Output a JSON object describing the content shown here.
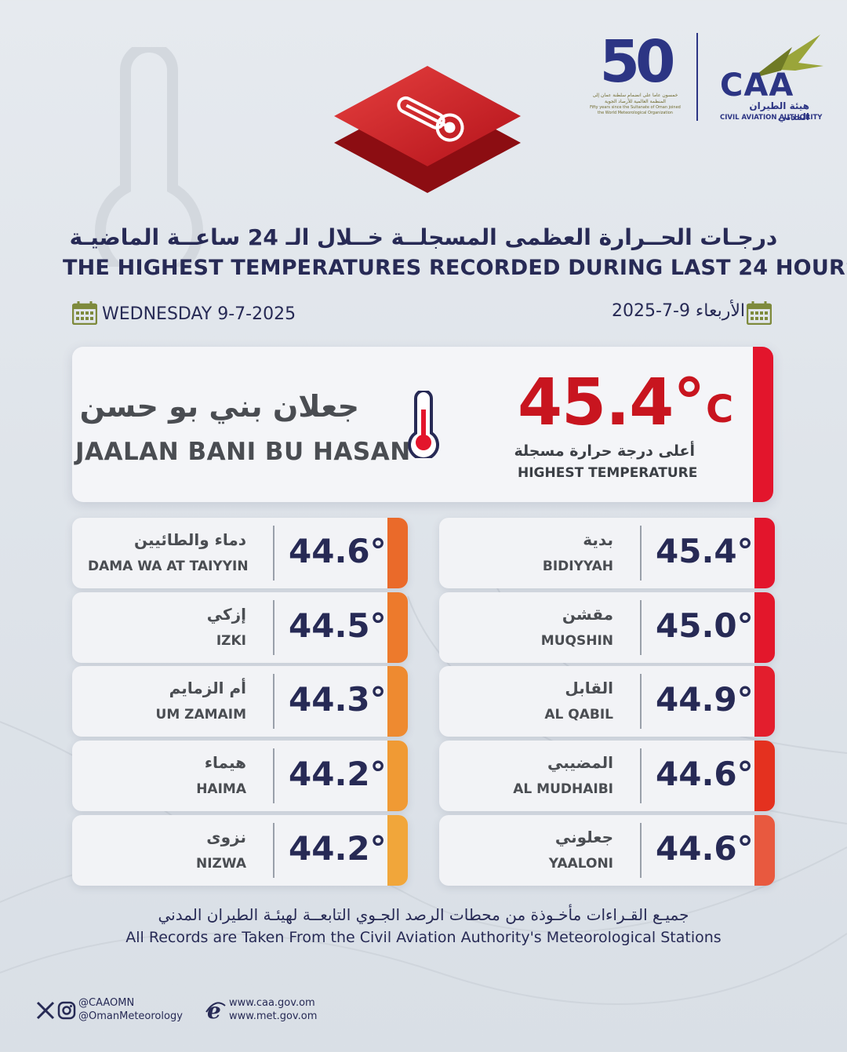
{
  "header": {
    "logo_50_numeral": "50",
    "logo_50_ar": "خمسون عاما على انضمام سلطنة عمان إلى المنظمة العالمية للأرصاد الجوية",
    "logo_50_en": "Fifty years since the Sultanate of Oman joined the World Meteorological Organization",
    "caa_word": "CAA",
    "caa_ar": "هيئة الطيران المدني",
    "caa_en": "CIVIL AVIATION AUTHORITY",
    "title_ar": "درجـات الحــرارة العظمى المسجلــة خــلال الـ 24 ساعــة الماضيـة",
    "title_en": "THE HIGHEST TEMPERATURES RECORDED DURING LAST 24 HOURS",
    "date_en": "WEDNESDAY  9-7-2025",
    "date_ar": "الأربعاء 9-7-2025"
  },
  "highlight": {
    "temp": "45.4°",
    "unit": "C",
    "label_ar": "أعلى درجة حرارة مسجلة",
    "label_en": "HIGHEST TEMPERATURE",
    "station_ar": "جعلان بني بو حسن",
    "station_en": "JAALAN BANI BU HASAN",
    "accent": "#e3152c"
  },
  "right_column": [
    {
      "ar": "بدية",
      "en": "BIDIYYAH",
      "value": "45.4°",
      "color": "#e3152c"
    },
    {
      "ar": "مقشن",
      "en": "MUQSHIN",
      "value": "45.0°",
      "color": "#e3172b"
    },
    {
      "ar": "القابل",
      "en": "AL QABIL",
      "value": "44.9°",
      "color": "#e31e2d"
    },
    {
      "ar": "المضيبي",
      "en": "AL MUDHAIBI",
      "value": "44.6°",
      "color": "#e4311f"
    },
    {
      "ar": "جعلوني",
      "en": "YAALONI",
      "value": "44.6°",
      "color": "#e8593f"
    }
  ],
  "left_column": [
    {
      "ar": "دماء والطائيين",
      "en": "DAMA WA AT TAIYYIN",
      "value": "44.6°",
      "color": "#ea6a2a"
    },
    {
      "ar": "إزكي",
      "en": "IZKI",
      "value": "44.5°",
      "color": "#ed7a2c"
    },
    {
      "ar": "أم الزمايم",
      "en": "UM ZAMAIM",
      "value": "44.3°",
      "color": "#ee8a30"
    },
    {
      "ar": "هيماء",
      "en": "HAIMA",
      "value": "44.2°",
      "color": "#f09a34"
    },
    {
      "ar": "نزوى",
      "en": "NIZWA",
      "value": "44.2°",
      "color": "#f1a63a"
    }
  ],
  "footer": {
    "note_ar": "جميـع القـراءات مأخـوذة من محطات الرصد الجـوي التابعــة لهيئـة الطيران المدني",
    "note_en": "All Records are Taken From the Civil Aviation Authority's Meteorological Stations",
    "handle_1": "@CAAOMN",
    "handle_2": "@OmanMeteorology",
    "web_1": "www.caa.gov.om",
    "web_2": "www.met.gov.om",
    "social_icons": [
      "x-icon",
      "instagram-icon"
    ],
    "web_icon": "browser-e-icon"
  }
}
